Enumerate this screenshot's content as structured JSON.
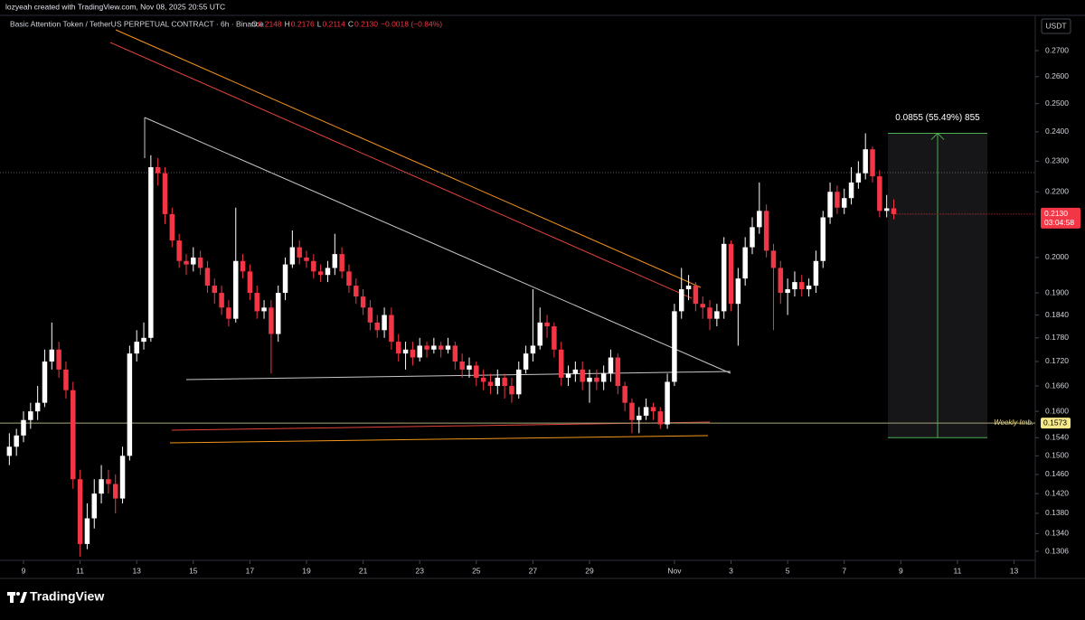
{
  "header": {
    "credit": "lozyeah created with TradingView.com, Nov 08, 2025 20:55 UTC"
  },
  "footer": {
    "brand": "TradingView"
  },
  "chart_data": {
    "type": "candlestick",
    "title": "Basic Attention Token / TetherUS PERPETUAL CONTRACT · 6h · Binance",
    "ohlc_legend": [
      {
        "label": "O",
        "value": "0.2148"
      },
      {
        "label": "H",
        "value": "0.2176"
      },
      {
        "label": "L",
        "value": "0.2114"
      },
      {
        "label": "C",
        "value": "0.2130"
      }
    ],
    "change": "−0.0018 (−0.84%)",
    "currency": "USDT",
    "up_color": "#ffffff",
    "down_color": "#f23645",
    "log_scale": true,
    "grid": false,
    "open": [
      0.15,
      0.152,
      0.1545,
      0.158,
      0.16,
      0.162,
      0.172,
      0.175,
      0.17,
      0.165,
      0.145,
      0.132,
      0.137,
      0.142,
      0.145,
      0.144,
      0.141,
      0.15,
      0.174,
      0.177,
      0.178,
      0.228,
      0.226,
      0.213,
      0.205,
      0.199,
      0.198,
      0.2,
      0.197,
      0.192,
      0.19,
      0.186,
      0.183,
      0.199,
      0.196,
      0.19,
      0.185,
      0.186,
      0.179,
      0.19,
      0.198,
      0.203,
      0.2,
      0.199,
      0.196,
      0.195,
      0.197,
      0.201,
      0.196,
      0.192,
      0.189,
      0.186,
      0.182,
      0.18,
      0.184,
      0.177,
      0.174,
      0.175,
      0.173,
      0.176,
      0.175,
      0.176,
      0.175,
      0.176,
      0.172,
      0.17,
      0.171,
      0.168,
      0.167,
      0.166,
      0.168,
      0.166,
      0.164,
      0.17,
      0.174,
      0.176,
      0.182,
      0.181,
      0.175,
      0.168,
      0.169,
      0.17,
      0.167,
      0.168,
      0.167,
      0.169,
      0.173,
      0.166,
      0.162,
      0.158,
      0.159,
      0.161,
      0.16,
      0.157,
      0.167,
      0.185,
      0.191,
      0.192,
      0.187,
      0.186,
      0.183,
      0.185,
      0.204,
      0.187,
      0.194,
      0.203,
      0.209,
      0.214,
      0.202,
      0.197,
      0.19,
      0.191,
      0.193,
      0.191,
      0.192,
      0.199,
      0.212,
      0.22,
      0.215,
      0.218,
      0.223,
      0.226,
      0.234,
      0.225,
      0.214,
      0.2148
    ],
    "high": [
      0.155,
      0.156,
      0.16,
      0.162,
      0.166,
      0.175,
      0.182,
      0.177,
      0.172,
      0.167,
      0.147,
      0.14,
      0.145,
      0.148,
      0.147,
      0.146,
      0.152,
      0.176,
      0.18,
      0.182,
      0.232,
      0.231,
      0.228,
      0.215,
      0.207,
      0.201,
      0.203,
      0.202,
      0.199,
      0.194,
      0.192,
      0.188,
      0.215,
      0.201,
      0.198,
      0.192,
      0.188,
      0.188,
      0.192,
      0.2,
      0.208,
      0.205,
      0.202,
      0.201,
      0.198,
      0.199,
      0.207,
      0.203,
      0.198,
      0.194,
      0.191,
      0.188,
      0.184,
      0.186,
      0.186,
      0.179,
      0.177,
      0.177,
      0.178,
      0.177,
      0.178,
      0.177,
      0.178,
      0.177,
      0.174,
      0.173,
      0.172,
      0.17,
      0.169,
      0.17,
      0.169,
      0.168,
      0.172,
      0.176,
      0.191,
      0.186,
      0.184,
      0.182,
      0.177,
      0.171,
      0.172,
      0.172,
      0.17,
      0.17,
      0.171,
      0.175,
      0.174,
      0.167,
      0.163,
      0.161,
      0.163,
      0.162,
      0.161,
      0.169,
      0.187,
      0.197,
      0.195,
      0.193,
      0.189,
      0.188,
      0.187,
      0.206,
      0.205,
      0.197,
      0.206,
      0.212,
      0.223,
      0.216,
      0.204,
      0.199,
      0.194,
      0.196,
      0.195,
      0.194,
      0.202,
      0.214,
      0.223,
      0.222,
      0.221,
      0.228,
      0.23,
      0.2395,
      0.235,
      0.227,
      0.219,
      0.2176
    ],
    "low": [
      0.148,
      0.15,
      0.153,
      0.156,
      0.158,
      0.161,
      0.17,
      0.168,
      0.163,
      0.143,
      0.1296,
      0.131,
      0.135,
      0.14,
      0.142,
      0.138,
      0.14,
      0.149,
      0.172,
      0.175,
      0.177,
      0.222,
      0.21,
      0.203,
      0.197,
      0.195,
      0.196,
      0.195,
      0.19,
      0.187,
      0.184,
      0.181,
      0.182,
      0.194,
      0.188,
      0.183,
      0.183,
      0.169,
      0.177,
      0.188,
      0.197,
      0.198,
      0.197,
      0.194,
      0.193,
      0.193,
      0.195,
      0.194,
      0.19,
      0.187,
      0.184,
      0.18,
      0.178,
      0.178,
      0.175,
      0.172,
      0.17,
      0.171,
      0.172,
      0.173,
      0.174,
      0.173,
      0.174,
      0.17,
      0.168,
      0.168,
      0.166,
      0.165,
      0.164,
      0.164,
      0.163,
      0.162,
      0.163,
      0.169,
      0.172,
      0.175,
      0.178,
      0.173,
      0.166,
      0.166,
      0.167,
      0.165,
      0.162,
      0.165,
      0.165,
      0.167,
      0.164,
      0.16,
      0.155,
      0.155,
      0.158,
      0.158,
      0.156,
      0.156,
      0.166,
      0.183,
      0.188,
      0.185,
      0.183,
      0.18,
      0.181,
      0.183,
      0.185,
      0.176,
      0.192,
      0.201,
      0.207,
      0.2,
      0.18,
      0.187,
      0.184,
      0.189,
      0.189,
      0.189,
      0.19,
      0.197,
      0.21,
      0.213,
      0.213,
      0.216,
      0.221,
      0.224,
      0.223,
      0.212,
      0.212,
      0.2114
    ],
    "close": [
      0.152,
      0.1545,
      0.158,
      0.16,
      0.162,
      0.172,
      0.175,
      0.17,
      0.165,
      0.145,
      0.132,
      0.137,
      0.142,
      0.145,
      0.144,
      0.141,
      0.15,
      0.174,
      0.177,
      0.178,
      0.228,
      0.226,
      0.213,
      0.205,
      0.199,
      0.198,
      0.2,
      0.197,
      0.192,
      0.19,
      0.186,
      0.183,
      0.199,
      0.196,
      0.19,
      0.185,
      0.186,
      0.179,
      0.19,
      0.198,
      0.203,
      0.2,
      0.199,
      0.196,
      0.195,
      0.197,
      0.201,
      0.196,
      0.192,
      0.189,
      0.186,
      0.182,
      0.18,
      0.184,
      0.177,
      0.174,
      0.175,
      0.173,
      0.176,
      0.175,
      0.176,
      0.175,
      0.176,
      0.172,
      0.17,
      0.171,
      0.168,
      0.167,
      0.166,
      0.168,
      0.166,
      0.164,
      0.17,
      0.174,
      0.176,
      0.182,
      0.181,
      0.175,
      0.168,
      0.169,
      0.17,
      0.167,
      0.168,
      0.167,
      0.169,
      0.173,
      0.166,
      0.162,
      0.158,
      0.159,
      0.161,
      0.16,
      0.157,
      0.167,
      0.185,
      0.191,
      0.192,
      0.187,
      0.186,
      0.183,
      0.185,
      0.204,
      0.187,
      0.194,
      0.203,
      0.209,
      0.214,
      0.202,
      0.197,
      0.19,
      0.191,
      0.193,
      0.191,
      0.192,
      0.199,
      0.212,
      0.22,
      0.215,
      0.218,
      0.223,
      0.226,
      0.234,
      0.225,
      0.214,
      0.2148,
      0.213
    ],
    "ylim": [
      0.1289,
      0.2838
    ],
    "yticks": [
      {
        "value": 0.27,
        "label": "0.2700"
      },
      {
        "value": 0.26,
        "label": "0.2600"
      },
      {
        "value": 0.25,
        "label": "0.2500"
      },
      {
        "value": 0.24,
        "label": "0.2400"
      },
      {
        "value": 0.23,
        "label": "0.2300"
      },
      {
        "value": 0.22,
        "label": "0.2200"
      },
      {
        "value": 0.2,
        "label": "0.2000"
      },
      {
        "value": 0.19,
        "label": "0.1900"
      },
      {
        "value": 0.184,
        "label": "0.1840"
      },
      {
        "value": 0.178,
        "label": "0.1780"
      },
      {
        "value": 0.172,
        "label": "0.1720"
      },
      {
        "value": 0.166,
        "label": "0.1660"
      },
      {
        "value": 0.16,
        "label": "0.1600"
      },
      {
        "value": 0.154,
        "label": "0.1540"
      },
      {
        "value": 0.15,
        "label": "0.1500"
      },
      {
        "value": 0.146,
        "label": "0.1460"
      },
      {
        "value": 0.142,
        "label": "0.1420"
      },
      {
        "value": 0.138,
        "label": "0.1380"
      },
      {
        "value": 0.134,
        "label": "0.1340"
      },
      {
        "value": 0.1306,
        "label": "0.1306"
      }
    ],
    "xlim": [
      -0.3,
      145
    ],
    "xticks": [
      {
        "value": 2,
        "label": "9"
      },
      {
        "value": 10,
        "label": "11"
      },
      {
        "value": 18,
        "label": "13"
      },
      {
        "value": 26,
        "label": "15"
      },
      {
        "value": 34,
        "label": "17"
      },
      {
        "value": 42,
        "label": "19"
      },
      {
        "value": 50,
        "label": "21"
      },
      {
        "value": 58,
        "label": "23"
      },
      {
        "value": 66,
        "label": "25"
      },
      {
        "value": 74,
        "label": "27"
      },
      {
        "value": 82,
        "label": "29"
      },
      {
        "value": 94,
        "label": "Nov"
      },
      {
        "value": 102,
        "label": "3"
      },
      {
        "value": 110,
        "label": "5"
      },
      {
        "value": 118,
        "label": "7"
      },
      {
        "value": 126,
        "label": "9"
      },
      {
        "value": 134,
        "label": "11"
      },
      {
        "value": 142,
        "label": "13"
      }
    ],
    "last_price": {
      "value": 0.213,
      "label": "0.2130",
      "countdown": "03:04:58"
    },
    "levels": [
      {
        "name": "Weekly Imb.",
        "value": 0.1573,
        "label": "0.1573"
      }
    ],
    "measure": {
      "label": "0.0855 (55.49%) 855",
      "from": 0.154,
      "to": 0.2395
    }
  }
}
